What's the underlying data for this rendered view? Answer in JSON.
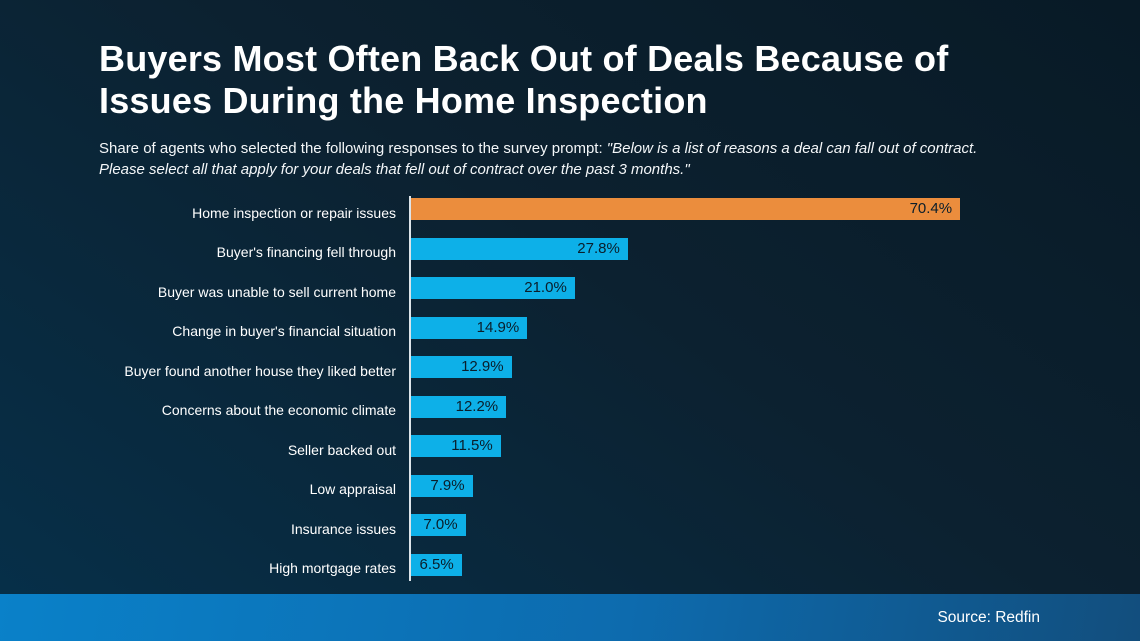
{
  "title": {
    "line1": "Buyers Most Often Back Out of Deals Because of",
    "line2": "Issues During the Home Inspection"
  },
  "subtitle": {
    "prefix": "Share of agents who selected the following responses to the survey prompt: ",
    "quote": "\"Below is a list of reasons a deal can fall out of contract. Please select all that apply for your deals that fell out of contract over the past 3 months.\""
  },
  "footer": {
    "source_label": "Source: Redfin"
  },
  "colors": {
    "background_top": "#081a26",
    "background_bottom": "#06304a",
    "bar_blue": "#0db0e8",
    "bar_orange": "#eb8d3d",
    "value_text": "#0a1e2b",
    "label_text": "#ffffff",
    "axis_line": "#dce4e9",
    "footer_gradient_left": "#0a81c9",
    "footer_gradient_right": "#124e7d"
  },
  "chart_data": {
    "type": "bar",
    "orientation": "horizontal",
    "title": "Buyers Most Often Back Out of Deals Because of Issues During the Home Inspection",
    "xlabel": "",
    "ylabel": "",
    "unit": "%",
    "xlim": [
      0,
      72
    ],
    "grid": false,
    "legend": false,
    "value_label_position": "inside-right",
    "highlight_index": 0,
    "categories": [
      "Home inspection or repair issues",
      "Buyer's financing fell through",
      "Buyer was unable to sell current home",
      "Change in buyer's financial situation",
      "Buyer found another house they liked better",
      "Concerns about the economic climate",
      "Seller backed out",
      "Low appraisal",
      "Insurance issues",
      "High mortgage rates"
    ],
    "values": [
      70.4,
      27.8,
      21.0,
      14.9,
      12.9,
      12.2,
      11.5,
      7.9,
      7.0,
      6.5
    ],
    "value_labels": [
      "70.4%",
      "27.8%",
      "21.0%",
      "14.9%",
      "12.9%",
      "12.2%",
      "11.5%",
      "7.9%",
      "7.0%",
      "6.5%"
    ]
  }
}
